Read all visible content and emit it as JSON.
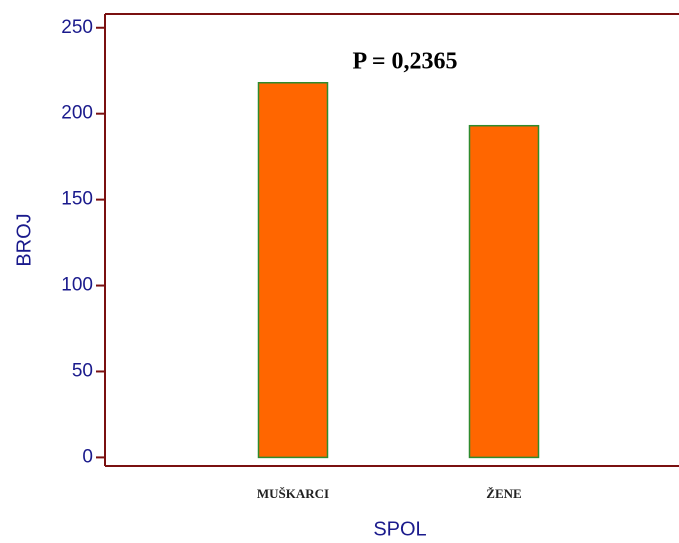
{
  "chart_data": {
    "type": "bar",
    "categories": [
      "MUŠKARCI",
      "ŽENE"
    ],
    "values": [
      218,
      193
    ],
    "color": "#ff6600",
    "edge_color": "#2e8b2e",
    "axis_color": "#7a1010",
    "label_color": "#1a1a8c",
    "xlabel": "SPOL",
    "ylabel": "BROJ",
    "annotation": "P = 0,2365",
    "ylim": [
      -5,
      258
    ],
    "yticks": [
      0,
      50,
      100,
      150,
      200,
      250
    ]
  }
}
